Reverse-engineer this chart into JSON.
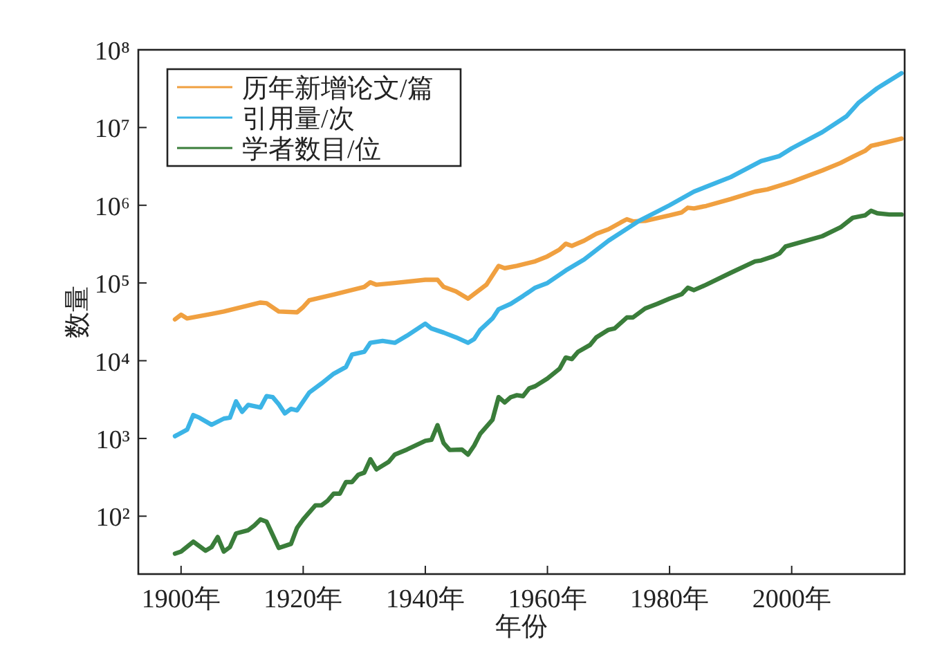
{
  "chart_data": {
    "type": "line",
    "xlabel": "年份",
    "ylabel": "数量",
    "log": "y",
    "grid": false,
    "legend": "top left",
    "line_style": "solid",
    "xlim": [
      1893,
      2018.5
    ],
    "ylim": [
      18,
      100000000
    ],
    "xticks": [
      {
        "value": 1900,
        "label": "1900年"
      },
      {
        "value": 1920,
        "label": "1920年"
      },
      {
        "value": 1940,
        "label": "1940年"
      },
      {
        "value": 1960,
        "label": "1960年"
      },
      {
        "value": 1980,
        "label": "1980年"
      },
      {
        "value": 2000,
        "label": "2000年"
      }
    ],
    "yticks": [
      {
        "value": 100,
        "label": "10²"
      },
      {
        "value": 1000,
        "label": "10³"
      },
      {
        "value": 10000,
        "label": "10⁴"
      },
      {
        "value": 100000,
        "label": "10⁵"
      },
      {
        "value": 1000000,
        "label": "10⁶"
      },
      {
        "value": 10000000,
        "label": "10⁷"
      },
      {
        "value": 100000000,
        "label": "10⁸"
      }
    ],
    "series": [
      {
        "name": "历年新增论文/篇",
        "color": "#f0a040",
        "x": [
          1899,
          1900,
          1901,
          1905,
          1907,
          1910,
          1913,
          1914,
          1916,
          1919,
          1920,
          1921,
          1925,
          1930,
          1931,
          1932,
          1935,
          1940,
          1942,
          1943,
          1945,
          1947,
          1950,
          1952,
          1953,
          1955,
          1958,
          1960,
          1962,
          1963,
          1964,
          1966,
          1968,
          1970,
          1972,
          1973,
          1974,
          1976,
          1980,
          1982,
          1983,
          1984,
          1986,
          1990,
          1994,
          1996,
          2000,
          2005,
          2008,
          2010,
          2012,
          2013,
          2015,
          2018
        ],
        "values": [
          34000,
          39000,
          35000,
          40000,
          43000,
          49000,
          56000,
          55000,
          43000,
          42000,
          49000,
          60000,
          71000,
          89000,
          102000,
          95000,
          100000,
          110000,
          110000,
          89000,
          78000,
          63000,
          95000,
          166000,
          155000,
          166000,
          190000,
          220000,
          270000,
          320000,
          300000,
          350000,
          430000,
          490000,
          600000,
          660000,
          620000,
          630000,
          740000,
          810000,
          930000,
          910000,
          980000,
          1200000,
          1500000,
          1600000,
          2000000,
          2800000,
          3500000,
          4200000,
          5000000,
          5800000,
          6300000,
          7200000
        ]
      },
      {
        "name": "引用量/次",
        "color": "#3cb4e6",
        "x": [
          1899,
          1901,
          1902,
          1903,
          1905,
          1907,
          1908,
          1909,
          1910,
          1911,
          1913,
          1914,
          1915,
          1916,
          1917,
          1918,
          1919,
          1921,
          1923,
          1925,
          1927,
          1928,
          1930,
          1931,
          1933,
          1935,
          1937,
          1940,
          1941,
          1943,
          1945,
          1947,
          1948,
          1949,
          1951,
          1952,
          1954,
          1956,
          1958,
          1960,
          1963,
          1966,
          1970,
          1975,
          1980,
          1984,
          1990,
          1995,
          1998,
          2000,
          2005,
          2009,
          2011,
          2014,
          2018
        ],
        "values": [
          1070,
          1300,
          2000,
          1850,
          1500,
          1800,
          1850,
          3000,
          2200,
          2700,
          2500,
          3500,
          3400,
          2750,
          2100,
          2400,
          2300,
          3900,
          5100,
          6800,
          8300,
          12000,
          13000,
          17000,
          18000,
          17000,
          21000,
          30000,
          26000,
          23000,
          20000,
          17000,
          19000,
          25000,
          35000,
          46000,
          54000,
          68000,
          87000,
          100000,
          145000,
          200000,
          350000,
          630000,
          1000000,
          1500000,
          2300000,
          3700000,
          4300000,
          5400000,
          8700000,
          14000000,
          21000000,
          32000000,
          50000000
        ]
      },
      {
        "name": "学者数目/位",
        "color": "#3a7d3a",
        "x": [
          1899,
          1900,
          1902,
          1904,
          1905,
          1906,
          1907,
          1908,
          1909,
          1911,
          1912,
          1913,
          1914,
          1916,
          1918,
          1919,
          1920,
          1922,
          1923,
          1924,
          1925,
          1926,
          1927,
          1928,
          1929,
          1930,
          1931,
          1932,
          1934,
          1935,
          1937,
          1940,
          1941,
          1942,
          1943,
          1944,
          1946,
          1947,
          1948,
          1949,
          1951,
          1952,
          1953,
          1954,
          1955,
          1956,
          1957,
          1958,
          1960,
          1962,
          1963,
          1964,
          1965,
          1967,
          1968,
          1970,
          1971,
          1973,
          1974,
          1976,
          1978,
          1980,
          1982,
          1983,
          1984,
          1986,
          1990,
          1994,
          1995,
          1997,
          1998,
          1999,
          2000,
          2005,
          2008,
          2010,
          2012,
          2013,
          2014,
          2016,
          2018
        ],
        "values": [
          33,
          35,
          47,
          36,
          40,
          54,
          35,
          40,
          60,
          66,
          76,
          91,
          85,
          39,
          44,
          71,
          91,
          138,
          138,
          158,
          195,
          195,
          275,
          275,
          340,
          363,
          540,
          400,
          500,
          620,
          720,
          930,
          960,
          1480,
          870,
          710,
          720,
          620,
          810,
          1150,
          1740,
          3400,
          2900,
          3400,
          3600,
          3500,
          4400,
          4700,
          5900,
          7900,
          11000,
          10500,
          13000,
          16000,
          20000,
          25000,
          26000,
          36000,
          36000,
          47000,
          54000,
          63000,
          72000,
          87000,
          81000,
          95000,
          135000,
          190000,
          195000,
          220000,
          240000,
          295000,
          310000,
          400000,
          520000,
          690000,
          740000,
          850000,
          790000,
          760000,
          760000
        ]
      }
    ]
  }
}
